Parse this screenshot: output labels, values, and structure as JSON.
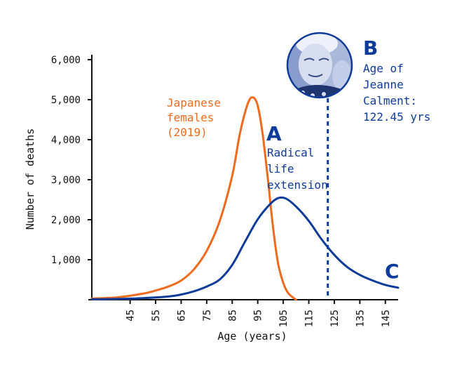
{
  "chart_data": {
    "type": "line",
    "xlabel": "Age (years)",
    "ylabel": "Number of deaths",
    "xlim": [
      30,
      150
    ],
    "ylim": [
      0,
      6000
    ],
    "x_ticks": [
      45,
      55,
      65,
      75,
      85,
      95,
      105,
      115,
      125,
      135,
      145
    ],
    "y_ticks": [
      1000,
      2000,
      3000,
      4000,
      5000,
      6000
    ],
    "y_tick_labels": [
      "1,000",
      "2,000",
      "3,000",
      "4,000",
      "5,000",
      "6,000"
    ],
    "grid": false,
    "series": [
      {
        "name": "Japanese females (2019)",
        "label_lines": [
          "Japanese",
          "females",
          "(2019)"
        ],
        "color": "#ee6a1d",
        "points": [
          [
            30,
            30
          ],
          [
            40,
            60
          ],
          [
            50,
            150
          ],
          [
            55,
            230
          ],
          [
            60,
            330
          ],
          [
            65,
            480
          ],
          [
            70,
            760
          ],
          [
            75,
            1220
          ],
          [
            80,
            1950
          ],
          [
            85,
            3100
          ],
          [
            88,
            4150
          ],
          [
            91,
            4880
          ],
          [
            93,
            5060
          ],
          [
            95,
            4850
          ],
          [
            97,
            4100
          ],
          [
            99,
            3000
          ],
          [
            101,
            1800
          ],
          [
            103,
            900
          ],
          [
            105,
            420
          ],
          [
            107,
            160
          ],
          [
            110,
            0
          ]
        ]
      },
      {
        "name": "Radical life extension",
        "color": "#0d3b9a",
        "points": [
          [
            30,
            10
          ],
          [
            40,
            20
          ],
          [
            50,
            40
          ],
          [
            60,
            80
          ],
          [
            65,
            130
          ],
          [
            70,
            210
          ],
          [
            75,
            330
          ],
          [
            80,
            500
          ],
          [
            85,
            870
          ],
          [
            90,
            1450
          ],
          [
            95,
            2010
          ],
          [
            100,
            2400
          ],
          [
            103,
            2540
          ],
          [
            106,
            2530
          ],
          [
            110,
            2330
          ],
          [
            115,
            1970
          ],
          [
            120,
            1510
          ],
          [
            125,
            1120
          ],
          [
            130,
            820
          ],
          [
            135,
            620
          ],
          [
            140,
            480
          ],
          [
            145,
            370
          ],
          [
            150,
            300
          ]
        ]
      }
    ],
    "reference_line": {
      "x": 122.45,
      "style": "dashed",
      "color": "#0d3b9a"
    },
    "annotations": {
      "A": {
        "letter": "A",
        "lines": [
          "Radical",
          "life",
          "extension"
        ]
      },
      "B": {
        "letter": "B",
        "lines": [
          "Age of",
          "Jeanne",
          "Calment:",
          "122.45 yrs"
        ]
      },
      "C": {
        "letter": "C"
      }
    }
  },
  "colors": {
    "axis": "#111111",
    "orange": "#ee6a1d",
    "navy": "#0d3b9a"
  },
  "icons": {
    "portrait": "portrait-photo-icon"
  }
}
